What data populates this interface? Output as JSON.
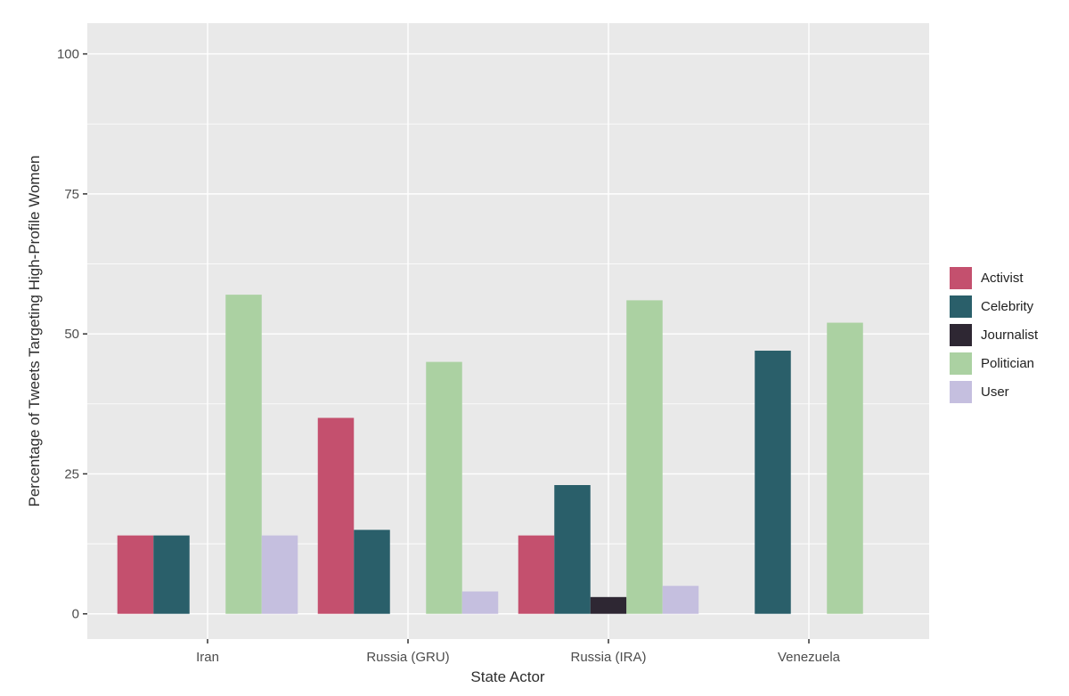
{
  "figure": {
    "background": "#FFFFFF",
    "panel_background": "#E9E9E9",
    "grid_color": "#FFFFFF",
    "axis_text_color": "#4D4D4D",
    "axis_title_color": "#2E2E2E",
    "tick_mark_color": "#333333"
  },
  "chart_data": {
    "type": "bar",
    "title": "",
    "xlabel": "State Actor",
    "ylabel": "Percentage of Tweets Targeting High-Profile Women",
    "categories": [
      "Iran",
      "Russia (GRU)",
      "Russia (IRA)",
      "Venezuela"
    ],
    "series": [
      {
        "name": "Activist",
        "color": "#C4506E",
        "values": [
          14,
          35,
          14,
          0
        ]
      },
      {
        "name": "Celebrity",
        "color": "#2A5F6A",
        "values": [
          14,
          15,
          23,
          47
        ]
      },
      {
        "name": "Journalist",
        "color": "#2E2733",
        "values": [
          0,
          0,
          3,
          0
        ]
      },
      {
        "name": "Politician",
        "color": "#ABD1A2",
        "values": [
          57,
          45,
          56,
          52
        ]
      },
      {
        "name": "User",
        "color": "#C5BFDF",
        "values": [
          14,
          4,
          5,
          0
        ]
      }
    ],
    "y_ticks": [
      0,
      25,
      50,
      75,
      100
    ],
    "y_minor_ticks": [
      12.5,
      37.5,
      62.5,
      87.5
    ],
    "ylim": [
      -4.5,
      105.5
    ],
    "grid": true,
    "legend_position": "right",
    "legend_labels": [
      "Activist",
      "Celebrity",
      "Journalist",
      "Politician",
      "User"
    ]
  }
}
